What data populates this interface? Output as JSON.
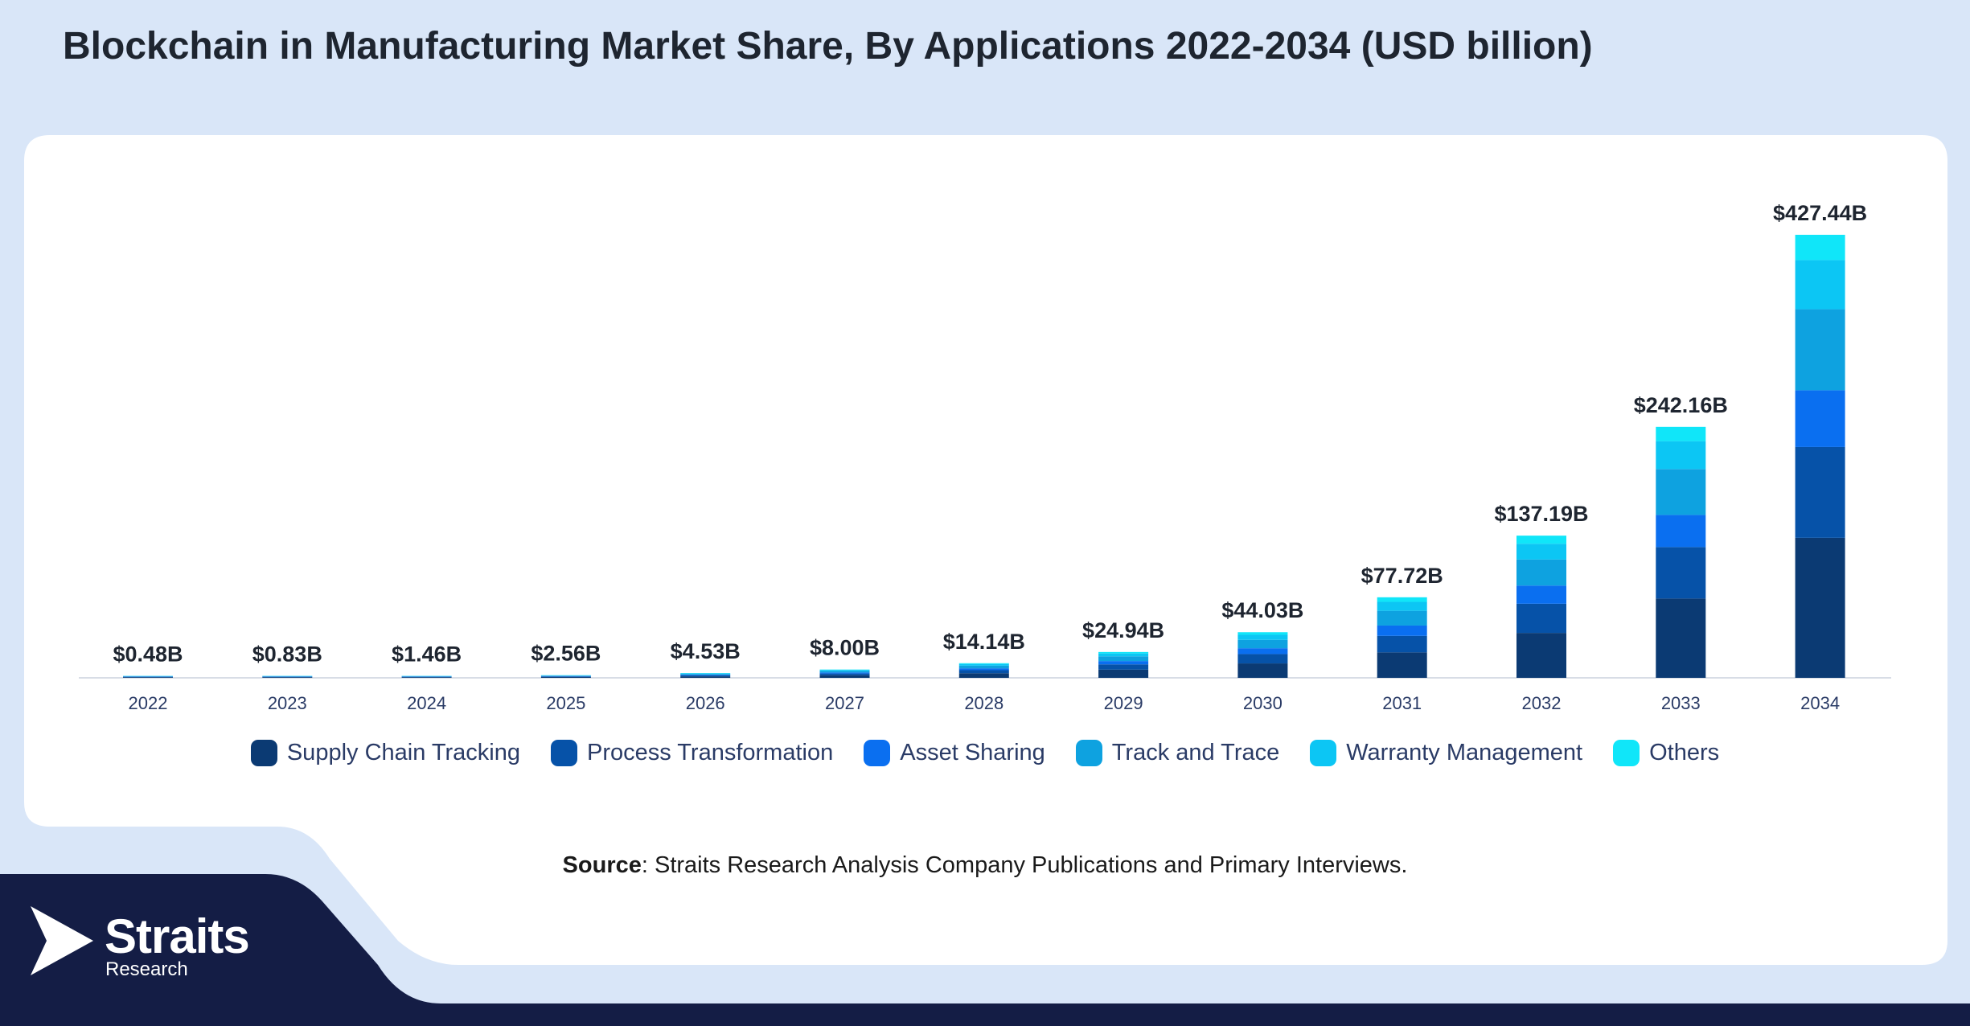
{
  "title": "Blockchain in Manufacturing Market Share, By Applications 2022-2034 (USD billion)",
  "source": {
    "label": "Source",
    "text": ": Straits Research Analysis Company Publications and Primary Interviews."
  },
  "brand": {
    "name": "Straits",
    "sub": "Research",
    "logo_icon": "arrow-logo-icon"
  },
  "colors": {
    "background": "#d9e6f8",
    "card": "#ffffff",
    "footer": "#141d45"
  },
  "chart_data": {
    "type": "bar",
    "stacked": true,
    "categories": [
      "2022",
      "2023",
      "2024",
      "2025",
      "2026",
      "2027",
      "2028",
      "2029",
      "2030",
      "2031",
      "2032",
      "2033",
      "2034"
    ],
    "totals": [
      0.48,
      0.83,
      1.46,
      2.56,
      4.53,
      8.0,
      14.14,
      24.94,
      44.03,
      77.72,
      137.19,
      242.16,
      427.44
    ],
    "total_labels": [
      "$0.48B",
      "$0.83B",
      "$1.46B",
      "$2.56B",
      "$4.53B",
      "$8.00B",
      "$14.14B",
      "$24.94B",
      "$44.03B",
      "$77.72B",
      "$137.19B",
      "$242.16B",
      "$427.44B"
    ],
    "series": [
      {
        "name": "Supply Chain Tracking",
        "color": "#0b3a73",
        "share": 0.316
      },
      {
        "name": "Process Transformation",
        "color": "#0652a8",
        "share": 0.205
      },
      {
        "name": "Asset Sharing",
        "color": "#0a6ff0",
        "share": 0.128
      },
      {
        "name": "Track and Trace",
        "color": "#0ea2e0",
        "share": 0.183
      },
      {
        "name": "Warranty Management",
        "color": "#0cc6f4",
        "share": 0.111
      },
      {
        "name": "Others",
        "color": "#10e6f9",
        "share": 0.057
      }
    ],
    "ylim": [
      0,
      427.44
    ],
    "grid": false,
    "legend_position": "bottom"
  }
}
